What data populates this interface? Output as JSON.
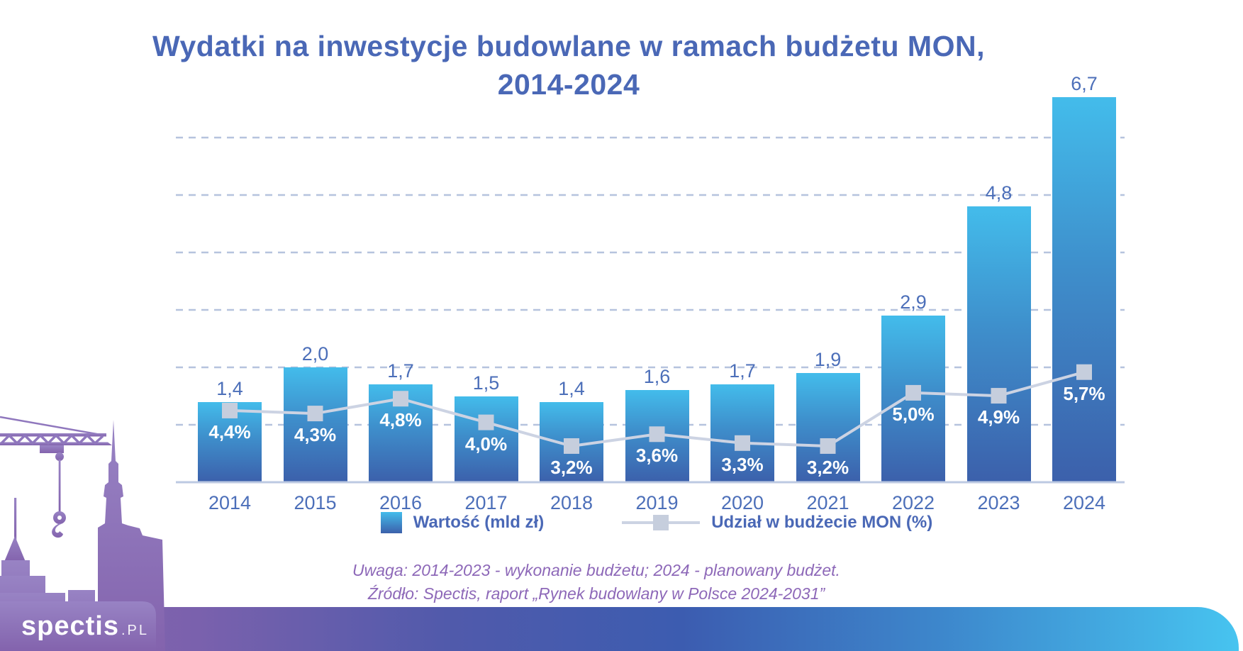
{
  "title": {
    "line1": "Wydatki na inwestycje budowlane w ramach budżetu MON,",
    "line2": "2014-2024"
  },
  "chart_data": {
    "type": "combo bar+line",
    "title": "Wydatki na inwestycje budowlane w ramach budżetu MON, 2014-2024",
    "categories": [
      "2014",
      "2015",
      "2016",
      "2017",
      "2018",
      "2019",
      "2020",
      "2021",
      "2022",
      "2023",
      "2024"
    ],
    "series": [
      {
        "name": "Wartość (mld zł)",
        "type": "bar",
        "values": [
          1.4,
          2.0,
          1.7,
          1.5,
          1.4,
          1.6,
          1.7,
          1.9,
          2.9,
          4.8,
          6.7
        ],
        "labels": [
          "1,4",
          "2,0",
          "1,7",
          "1,5",
          "1,4",
          "1,6",
          "1,7",
          "1,9",
          "2,9",
          "4,8",
          "6,7"
        ]
      },
      {
        "name": "Udział w budżecie MON (%)",
        "type": "line",
        "values": [
          4.4,
          4.3,
          4.8,
          4.0,
          3.2,
          3.6,
          3.3,
          3.2,
          5.0,
          4.9,
          5.7
        ],
        "labels": [
          "4,4%",
          "4,3%",
          "4,8%",
          "4,0%",
          "3,2%",
          "3,6%",
          "3,3%",
          "3,2%",
          "5,0%",
          "4,9%",
          "5,7%"
        ]
      }
    ],
    "xlabel": "",
    "ylabel": "",
    "ylim": [
      0,
      7
    ],
    "gridline_values": [
      1,
      2,
      3,
      4,
      5,
      6
    ],
    "grid": "horizontal dashed, unlabeled",
    "legend_position": "bottom"
  },
  "legend": {
    "items": [
      {
        "label": "Wartość (mld zł)",
        "swatch": "bar"
      },
      {
        "label": "Udział w budżecie MON (%)",
        "swatch": "line-marker"
      }
    ]
  },
  "notes": {
    "line1": "Uwaga: 2014-2023 - wykonanie budżetu; 2024 - planowany budżet.",
    "line2": "Źródło: Spectis, raport „Rynek budowlany w Polsce 2024-2031”"
  },
  "logo": {
    "brand": "spectis",
    "suffix": ".pl"
  },
  "colors": {
    "title_blue": "#4a68b6",
    "label_blue": "#4c6fb9",
    "bar_top": "#43bceb",
    "bar_bottom": "#3c60ab",
    "line": "#ccd3e3",
    "marker": "#c6cedd",
    "grid": "#b6c3de",
    "axis": "#bcc9e2",
    "note_purple": "#8d68b8",
    "silhouette_top": "#9883c4",
    "silhouette_bottom": "#8363ad",
    "footer_left": "#8b64ae",
    "footer_mid": "#3c5cb0",
    "footer_right": "#47c4f0"
  }
}
